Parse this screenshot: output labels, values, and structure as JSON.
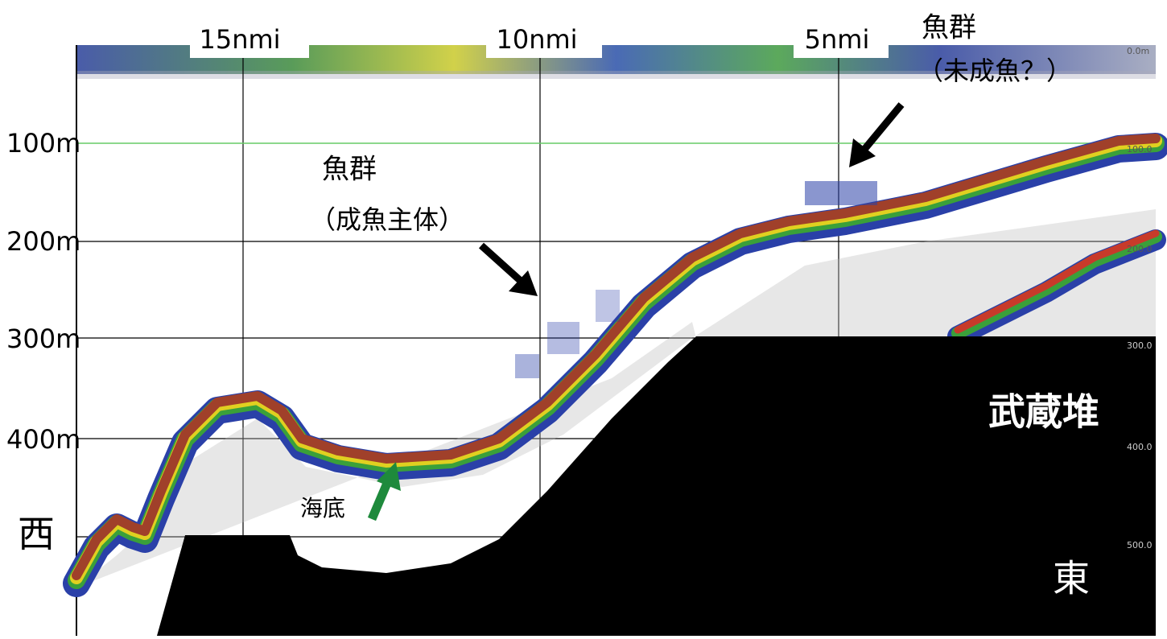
{
  "distance_labels": [
    "15nmi",
    "10nmi",
    "5nmi"
  ],
  "depth_labels": [
    "100m",
    "200m",
    "300m",
    "400m"
  ],
  "annotations": {
    "juvenile_school": {
      "title": "魚群",
      "note": "（未成魚？）"
    },
    "adult_school": {
      "title": "魚群",
      "note": "（成魚主体）"
    },
    "seabed": "海底",
    "bank": "武蔵堆",
    "west": "西",
    "east": "東"
  },
  "scale_labels": [
    "0.0m",
    "100.0",
    "200.0",
    "300.0",
    "400.0",
    "500.0"
  ]
}
